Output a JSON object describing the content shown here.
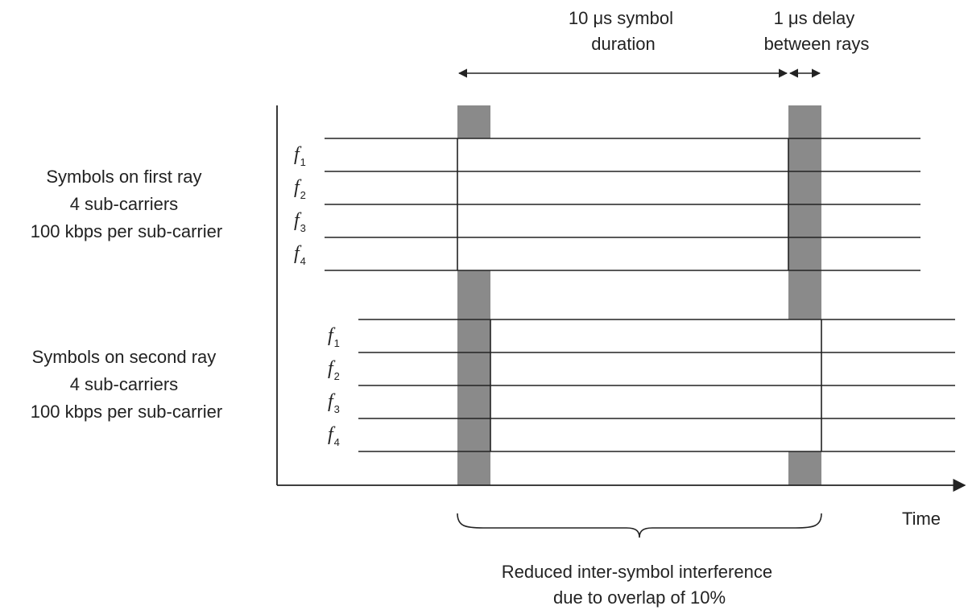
{
  "duration_label": [
    "10 μs symbol",
    "duration"
  ],
  "delay_label": [
    "1 μs delay",
    "between rays"
  ],
  "first_ray": {
    "label": [
      "Symbols on first ray",
      "4 sub-carriers",
      "100 kbps per sub-carrier"
    ],
    "carriers": [
      {
        "symbol": "f",
        "index": "1"
      },
      {
        "symbol": "f",
        "index": "2"
      },
      {
        "symbol": "f",
        "index": "3"
      },
      {
        "symbol": "f",
        "index": "4"
      }
    ]
  },
  "second_ray": {
    "label": [
      "Symbols on second ray",
      "4 sub-carriers",
      "100 kbps per sub-carrier"
    ],
    "carriers": [
      {
        "symbol": "f",
        "index": "1"
      },
      {
        "symbol": "f",
        "index": "2"
      },
      {
        "symbol": "f",
        "index": "3"
      },
      {
        "symbol": "f",
        "index": "4"
      }
    ]
  },
  "time_label": "Time",
  "overlap_label": [
    "Reduced inter-symbol interference",
    "due to overlap of 10%"
  ],
  "colors": {
    "line": "#222222",
    "overlap_band": "#8a8a8a"
  }
}
